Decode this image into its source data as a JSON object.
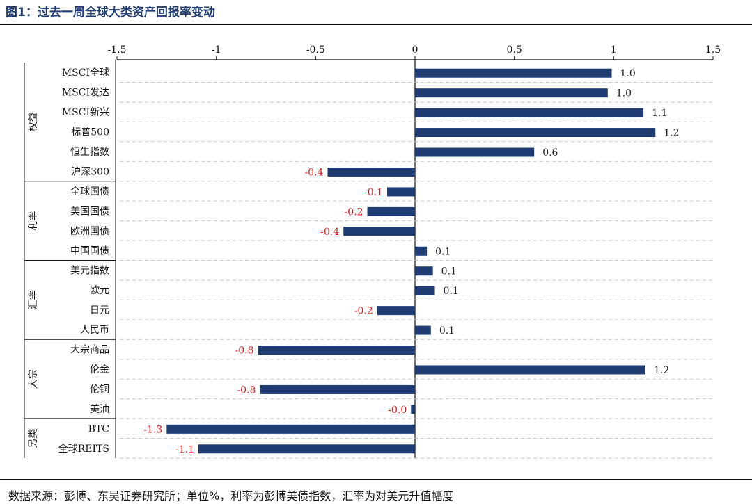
{
  "header": {
    "title": "图1：过去一周全球大类资产回报率变动"
  },
  "footer": {
    "source": "数据来源：彭博、东吴证券研究所；单位%，利率为彭博美债指数，汇率为对美元升值幅度"
  },
  "colors": {
    "bar": "#1f3c73",
    "negative_label": "#e31a1c",
    "positive_label": "#222222",
    "grid": "#c8c8c8"
  },
  "chart_data": {
    "type": "bar",
    "orientation": "horizontal",
    "title": "图1：过去一周全球大类资产回报率变动",
    "xlim": [
      -1.5,
      1.5
    ],
    "x_ticks": [
      "-1.5",
      "-1",
      "-0.5",
      "0",
      "0.5",
      "1",
      "1.5"
    ],
    "x_tick_values": [
      -1.5,
      -1,
      -0.5,
      0,
      0.5,
      1,
      1.5
    ],
    "x_axis_position": "top",
    "grid": true,
    "groups": [
      {
        "name": "权益",
        "categories": [
          "MSCI全球",
          "MSCI发达",
          "MSCI新兴",
          "标普500",
          "恒生指数",
          "沪深300"
        ]
      },
      {
        "name": "利率",
        "categories": [
          "全球国债",
          "美国国债",
          "欧洲国债",
          "中国国债"
        ]
      },
      {
        "name": "汇率",
        "categories": [
          "美元指数",
          "欧元",
          "日元",
          "人民币"
        ]
      },
      {
        "name": "大宗",
        "categories": [
          "大宗商品",
          "伦金",
          "伦铜",
          "美油"
        ]
      },
      {
        "name": "另类",
        "categories": [
          "BTC",
          "全球REITS"
        ]
      }
    ],
    "categories": [
      "MSCI全球",
      "MSCI发达",
      "MSCI新兴",
      "标普500",
      "恒生指数",
      "沪深300",
      "全球国债",
      "美国国债",
      "欧洲国债",
      "中国国债",
      "美元指数",
      "欧元",
      "日元",
      "人民币",
      "大宗商品",
      "伦金",
      "伦铜",
      "美油",
      "BTC",
      "全球REITS"
    ],
    "values": [
      0.99,
      0.97,
      1.15,
      1.21,
      0.6,
      -0.44,
      -0.14,
      -0.24,
      -0.36,
      0.06,
      0.09,
      0.1,
      -0.19,
      0.08,
      -0.79,
      1.16,
      -0.78,
      -0.02,
      -1.25,
      -1.09
    ],
    "labels": [
      "1.0",
      "1.0",
      "1.1",
      "1.2",
      "0.6",
      "-0.4",
      "-0.1",
      "-0.2",
      "-0.4",
      "0.1",
      "0.1",
      "0.1",
      "-0.2",
      "0.1",
      "-0.8",
      "1.2",
      "-0.8",
      "-0.0",
      "-1.3",
      "-1.1"
    ]
  }
}
